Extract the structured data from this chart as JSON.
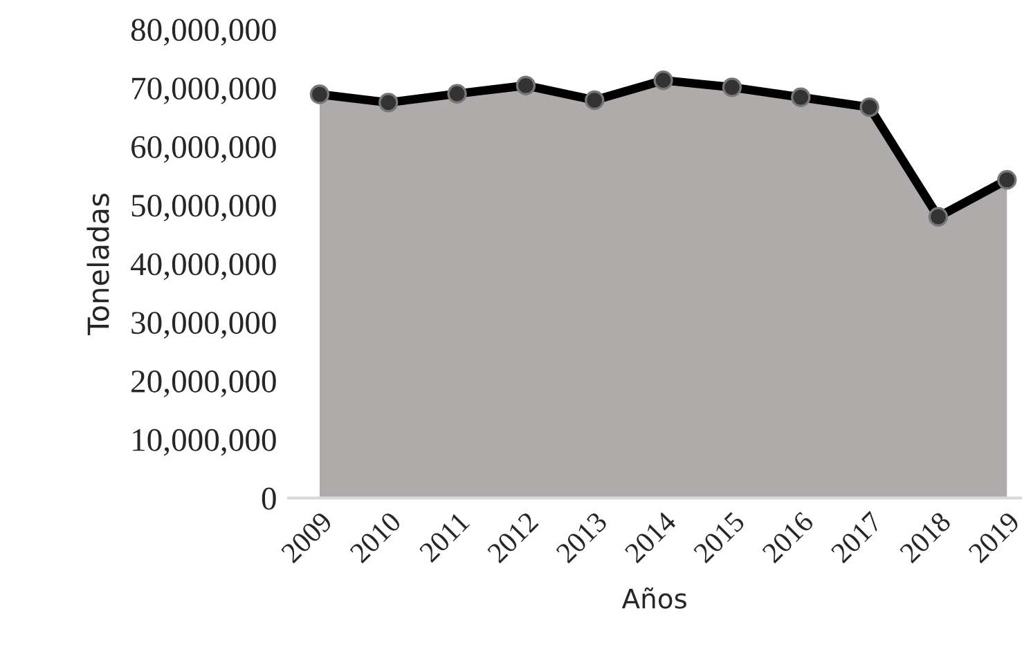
{
  "chart_data": {
    "type": "area",
    "xlabel": "Años",
    "ylabel": "Toneladas",
    "categories": [
      "2009",
      "2010",
      "2011",
      "2012",
      "2013",
      "2014",
      "2015",
      "2016",
      "2017",
      "2018",
      "2019"
    ],
    "series": [
      {
        "color": "#afabaa",
        "values": [
          68900000,
          67500000,
          69000000,
          70400000,
          67900000,
          71300000,
          70100000,
          68400000,
          66700000,
          48000000,
          54300000
        ]
      }
    ],
    "ylim": [
      0,
      80000000
    ],
    "yticks": [
      {
        "value": 0,
        "label": "0"
      },
      {
        "value": 10000000,
        "label": "10,000,000"
      },
      {
        "value": 20000000,
        "label": "20,000,000"
      },
      {
        "value": 30000000,
        "label": "30,000,000"
      },
      {
        "value": 40000000,
        "label": "40,000,000"
      },
      {
        "value": 50000000,
        "label": "50,000,000"
      },
      {
        "value": 60000000,
        "label": "60,000,000"
      },
      {
        "value": 70000000,
        "label": "70,000,000"
      },
      {
        "value": 80000000,
        "label": "80,000,000"
      }
    ],
    "marker": "circle",
    "line_style": "solid",
    "grid": false,
    "legend": false
  }
}
